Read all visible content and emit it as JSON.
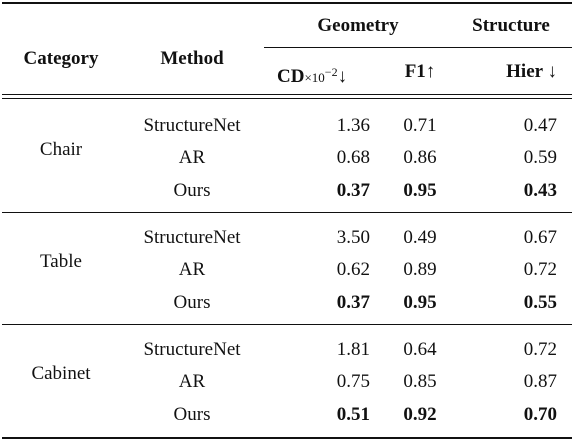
{
  "table": {
    "group_headers": {
      "geometry": "Geometry",
      "structure": "Structure"
    },
    "headers": {
      "category": "Category",
      "method": "Method",
      "cd": "CD",
      "cd_scale": "×10",
      "cd_exp": "−2",
      "cd_arrow": "↓",
      "f1": "F1",
      "f1_arrow": "↑",
      "hier": "Hier",
      "hier_arrow": "↓"
    },
    "groups": [
      {
        "category": "Chair",
        "rows": [
          {
            "method": "StructureNet",
            "cd": "1.36",
            "f1": "0.71",
            "hier": "0.47"
          },
          {
            "method": "AR",
            "cd": "0.68",
            "f1": "0.86",
            "hier": "0.59"
          },
          {
            "method": "Ours",
            "cd": "0.37",
            "f1": "0.95",
            "hier": "0.43"
          }
        ]
      },
      {
        "category": "Table",
        "rows": [
          {
            "method": "StructureNet",
            "cd": "3.50",
            "f1": "0.49",
            "hier": "0.67"
          },
          {
            "method": "AR",
            "cd": "0.62",
            "f1": "0.89",
            "hier": "0.72"
          },
          {
            "method": "Ours",
            "cd": "0.37",
            "f1": "0.95",
            "hier": "0.55"
          }
        ]
      },
      {
        "category": "Cabinet",
        "rows": [
          {
            "method": "StructureNet",
            "cd": "1.81",
            "f1": "0.64",
            "hier": "0.72"
          },
          {
            "method": "AR",
            "cd": "0.75",
            "f1": "0.85",
            "hier": "0.87"
          },
          {
            "method": "Ours",
            "cd": "0.51",
            "f1": "0.92",
            "hier": "0.70"
          }
        ]
      }
    ]
  }
}
